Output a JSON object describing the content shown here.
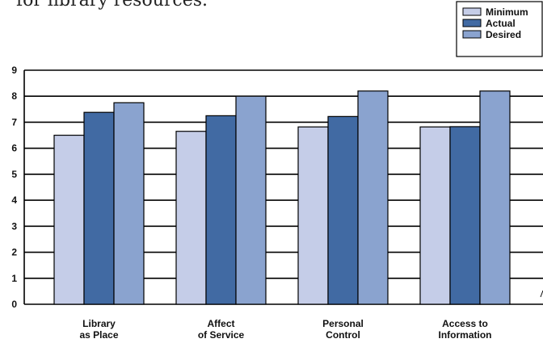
{
  "page": {
    "top_text": "for library resources."
  },
  "chart_data": {
    "type": "bar",
    "categories": [
      [
        "Library",
        "as Place"
      ],
      [
        "Affect",
        "of Service"
      ],
      [
        "Personal",
        "Control"
      ],
      [
        "Access to",
        "Information"
      ]
    ],
    "series": [
      {
        "name": "Minimum",
        "color": "#c5cde8",
        "values": [
          6.5,
          6.65,
          6.82,
          6.82
        ]
      },
      {
        "name": "Actual",
        "color": "#416aa3",
        "values": [
          7.38,
          7.25,
          7.22,
          6.83
        ]
      },
      {
        "name": "Desired",
        "color": "#8aa3cf",
        "values": [
          7.75,
          8.0,
          8.2,
          8.2
        ]
      }
    ],
    "ylim": [
      0,
      9
    ],
    "yticks": [
      "0",
      "1",
      "2",
      "3",
      "4",
      "5",
      "6",
      "7",
      "8",
      "9"
    ],
    "grid": true,
    "legend_position": "top-right"
  }
}
